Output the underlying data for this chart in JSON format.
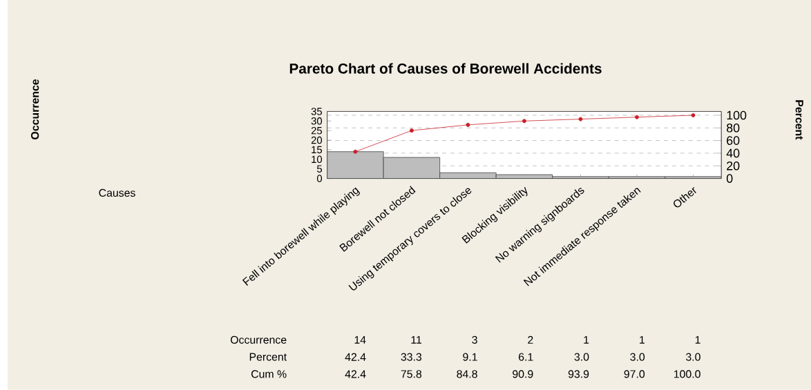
{
  "chart_data": {
    "type": "bar",
    "title": "Pareto Chart of Causes of Borewell Accidents",
    "y2label": "Percent",
    "categories": [
      "Fell into borewell while playing",
      "Borewell not closed",
      "Using temporary covers to close",
      "Blocking visibility",
      "No warning signboards",
      "Not immediate response taken",
      "Other"
    ],
    "series": [
      {
        "type": "bar",
        "color": "#bdbdbd",
        "values": [
          14,
          11,
          3,
          2,
          1,
          1,
          1
        ]
      },
      {
        "type": "line",
        "axis": "y2",
        "color": "#c8202a",
        "marker": "circle",
        "values": [
          42.4,
          75.8,
          84.8,
          90.9,
          93.9,
          97.0,
          100.0
        ]
      }
    ],
    "ylim": [
      0,
      35
    ],
    "yticks": [
      0,
      5,
      10,
      15,
      20,
      25,
      30,
      35
    ],
    "y2lim": [
      0,
      106
    ],
    "y2ticks": [
      0,
      20,
      40,
      60,
      80,
      100
    ],
    "grid": "y",
    "annotations": [
      "Occurrence",
      "Causes",
      "Occurrence",
      "14",
      "11",
      "3",
      "2",
      "1",
      "1",
      "1",
      "Percent",
      "42.4",
      "33.3",
      "9.1",
      "6.1",
      "3.0",
      "3.0",
      "3.0",
      "Cum %",
      "42.4",
      "75.8",
      "84.8",
      "90.9",
      "93.9",
      "97.0",
      "100.0"
    ]
  }
}
